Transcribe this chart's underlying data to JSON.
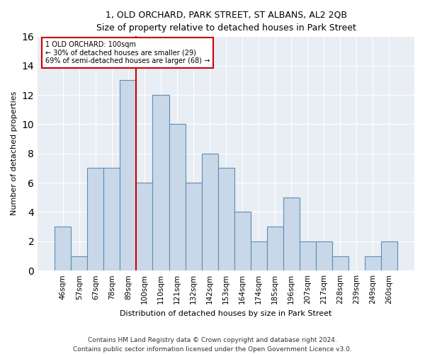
{
  "title": "1, OLD ORCHARD, PARK STREET, ST ALBANS, AL2 2QB",
  "subtitle": "Size of property relative to detached houses in Park Street",
  "xlabel": "Distribution of detached houses by size in Park Street",
  "ylabel": "Number of detached properties",
  "bar_color": "#c8d8e8",
  "bar_edge_color": "#5b8db8",
  "background_color": "#e8eef4",
  "categories": [
    "46sqm",
    "57sqm",
    "67sqm",
    "78sqm",
    "89sqm",
    "100sqm",
    "110sqm",
    "121sqm",
    "132sqm",
    "142sqm",
    "153sqm",
    "164sqm",
    "174sqm",
    "185sqm",
    "196sqm",
    "207sqm",
    "217sqm",
    "228sqm",
    "239sqm",
    "249sqm",
    "260sqm"
  ],
  "values": [
    3,
    1,
    7,
    7,
    13,
    6,
    12,
    10,
    6,
    8,
    7,
    4,
    2,
    3,
    5,
    2,
    2,
    1,
    0,
    1,
    2
  ],
  "ylim": [
    0,
    16
  ],
  "yticks": [
    0,
    2,
    4,
    6,
    8,
    10,
    12,
    14,
    16
  ],
  "marker_index": 4,
  "marker_color": "#cc0000",
  "annotation_line1": "1 OLD ORCHARD: 100sqm",
  "annotation_line2": "← 30% of detached houses are smaller (29)",
  "annotation_line3": "69% of semi-detached houses are larger (68) →",
  "footer1": "Contains HM Land Registry data © Crown copyright and database right 2024.",
  "footer2": "Contains public sector information licensed under the Open Government Licence v3.0.",
  "title_fontsize": 9,
  "axis_label_fontsize": 8,
  "tick_fontsize": 7.5,
  "footer_fontsize": 6.5
}
